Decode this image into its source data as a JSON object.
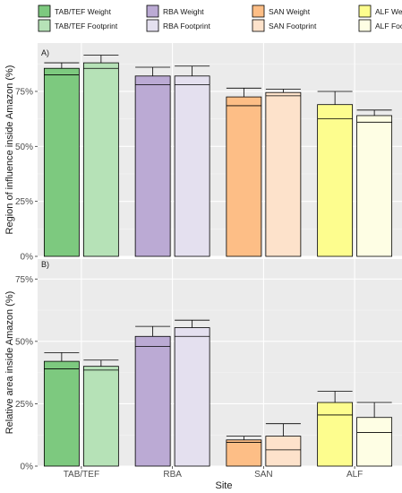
{
  "colors": {
    "panel_bg": "#ebebeb",
    "grid_major": "#ffffff",
    "grid_minor": "#f5f5f5",
    "TAB/TEF Weight": "#7dc97f",
    "TAB/TEF Footprint": "#b6e2b7",
    "RBA Weight": "#bbaad4",
    "RBA Footprint": "#e4e0ef",
    "SAN Weight": "#fdbe86",
    "SAN Footprint": "#fde2cb",
    "ALF Weight": "#fdfd8e",
    "ALF Footprint": "#fefee4"
  },
  "legend": {
    "items": [
      {
        "label": "TAB/TEF Weight",
        "swatch": "TAB/TEF Weight"
      },
      {
        "label": "RBA Weight",
        "swatch": "RBA Weight"
      },
      {
        "label": "SAN Weight",
        "swatch": "SAN Weight"
      },
      {
        "label": "ALF Weight",
        "swatch": "ALF Weight"
      },
      {
        "label": "TAB/TEF Footprint",
        "swatch": "TAB/TEF Footprint"
      },
      {
        "label": "RBA Footprint",
        "swatch": "RBA Footprint"
      },
      {
        "label": "SAN Footprint",
        "swatch": "SAN Footprint"
      },
      {
        "label": "ALF Footprint",
        "swatch": "ALF Footprint"
      }
    ]
  },
  "chart_data": [
    {
      "type": "bar",
      "panel_tag": "A)",
      "title": "",
      "xlabel": "",
      "ylabel": "Region of influence inside Amazon (%)",
      "ylim": [
        0,
        97
      ],
      "yticks": [
        "0%",
        "25%",
        "50%",
        "75%"
      ],
      "ytick_values": [
        0,
        25,
        50,
        75
      ],
      "categories": [
        "TAB/TEF",
        "RBA",
        "SAN",
        "ALF"
      ],
      "series": [
        {
          "name": "Weight",
          "values": [
            85.5,
            82.0,
            72.5,
            69.0
          ],
          "mean_line": [
            82.5,
            78.0,
            68.5,
            62.5
          ],
          "err_high": [
            88.0,
            86.0,
            76.5,
            75.0
          ]
        },
        {
          "name": "Footprint",
          "values": [
            88.0,
            82.0,
            74.5,
            64.0
          ],
          "mean_line": [
            85.5,
            78.0,
            73.0,
            61.0
          ],
          "err_high": [
            91.5,
            86.5,
            76.0,
            66.5
          ]
        }
      ]
    },
    {
      "type": "bar",
      "panel_tag": "B)",
      "title": "",
      "xlabel": "Site",
      "ylabel": "Relative area inside Amazon (%)",
      "ylim": [
        0,
        83
      ],
      "yticks": [
        "0%",
        "25%",
        "50%",
        "75%"
      ],
      "ytick_values": [
        0,
        25,
        50,
        75
      ],
      "categories": [
        "TAB/TEF",
        "RBA",
        "SAN",
        "ALF"
      ],
      "series": [
        {
          "name": "Weight",
          "values": [
            42.0,
            52.0,
            10.5,
            25.5
          ],
          "mean_line": [
            39.0,
            48.0,
            9.5,
            20.5
          ],
          "err_high": [
            45.5,
            56.0,
            12.0,
            30.0
          ]
        },
        {
          "name": "Footprint",
          "values": [
            40.0,
            55.5,
            12.0,
            19.5
          ],
          "mean_line": [
            38.5,
            52.0,
            6.5,
            13.5
          ],
          "err_high": [
            42.5,
            58.5,
            17.0,
            25.5
          ]
        }
      ]
    }
  ]
}
